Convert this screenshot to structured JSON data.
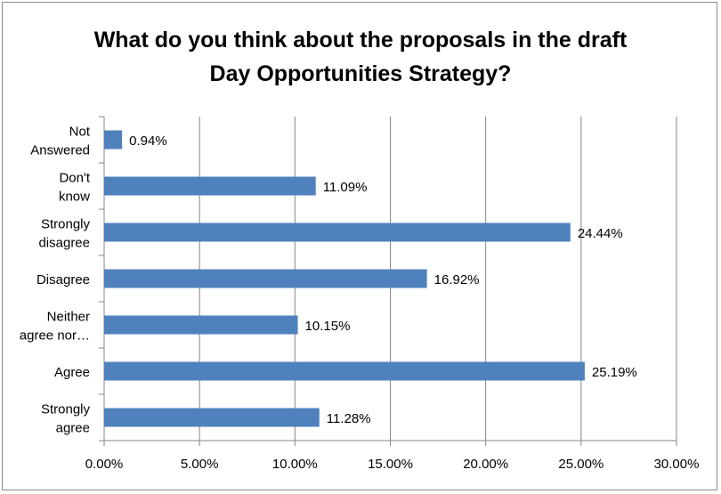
{
  "chart_data": {
    "type": "bar",
    "orientation": "horizontal",
    "title_lines": [
      "What do you think about the proposals in the draft",
      "Day Opportunities Strategy?"
    ],
    "categories": [
      [
        "Not",
        "Answered"
      ],
      [
        "Don't",
        "know"
      ],
      [
        "Strongly",
        "disagree"
      ],
      [
        "Disagree"
      ],
      [
        "Neither",
        "agree nor…"
      ],
      [
        "Agree"
      ],
      [
        "Strongly",
        "agree"
      ]
    ],
    "values": [
      0.94,
      11.09,
      24.44,
      16.92,
      10.15,
      25.19,
      11.28
    ],
    "value_labels": [
      "0.94%",
      "11.09%",
      "24.44%",
      "16.92%",
      "10.15%",
      "25.19%",
      "11.28%"
    ],
    "x_ticks": [
      0,
      5,
      10,
      15,
      20,
      25,
      30
    ],
    "x_tick_labels": [
      "0.00%",
      "5.00%",
      "10.00%",
      "15.00%",
      "20.00%",
      "25.00%",
      "30.00%"
    ],
    "xlim": [
      0,
      30
    ],
    "grid": "vertical",
    "legend": "none",
    "bar_color": "#4f81bd"
  }
}
